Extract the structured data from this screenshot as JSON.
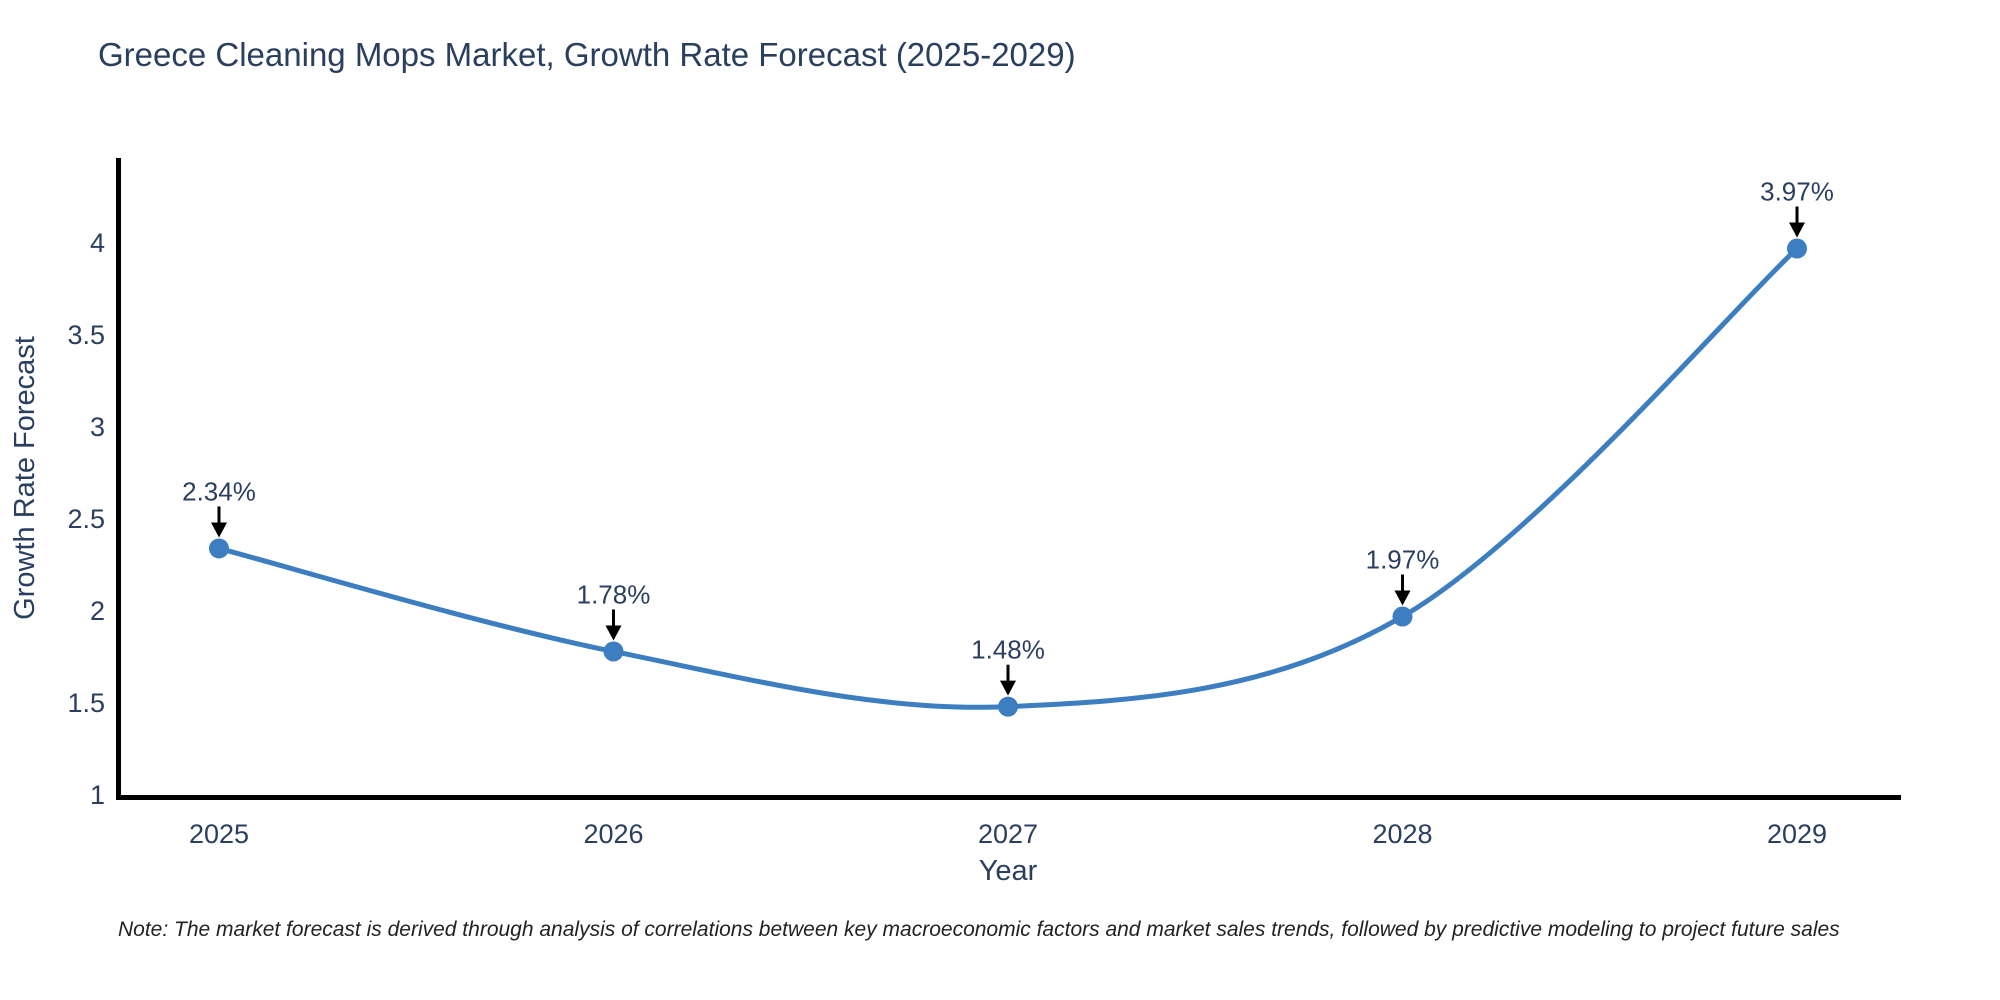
{
  "title": "Greece Cleaning Mops Market, Growth Rate Forecast (2025-2029)",
  "note": "Note: The market forecast is derived through analysis of correlations between key macroeconomic factors and market sales trends, followed by predictive modeling to project future sales",
  "chart_data": {
    "type": "line",
    "title": "Greece Cleaning Mops Market, Growth Rate Forecast (2025-2029)",
    "xlabel": "Year",
    "ylabel": "Growth Rate Forecast",
    "categories": [
      "2025",
      "2026",
      "2027",
      "2028",
      "2029"
    ],
    "series": [
      {
        "name": "Growth Rate Forecast",
        "values": [
          2.34,
          1.78,
          1.48,
          1.97,
          3.97
        ]
      }
    ],
    "point_labels": [
      "2.34%",
      "1.78%",
      "1.48%",
      "1.97%",
      "3.97%"
    ],
    "yticks": [
      1,
      1.5,
      2,
      2.5,
      3,
      3.5,
      4
    ],
    "ylim": [
      1,
      4.46
    ],
    "line_shape": "spline",
    "grid": false,
    "legend": "none",
    "colors": {
      "line": "#3c7ebf",
      "marker": "#3c7ebf",
      "arrow": "#000000",
      "axis_line": "#000000",
      "title_text": "#2a3f5f",
      "axis_text": "#2a3f5f",
      "note_text": "#222222"
    }
  }
}
